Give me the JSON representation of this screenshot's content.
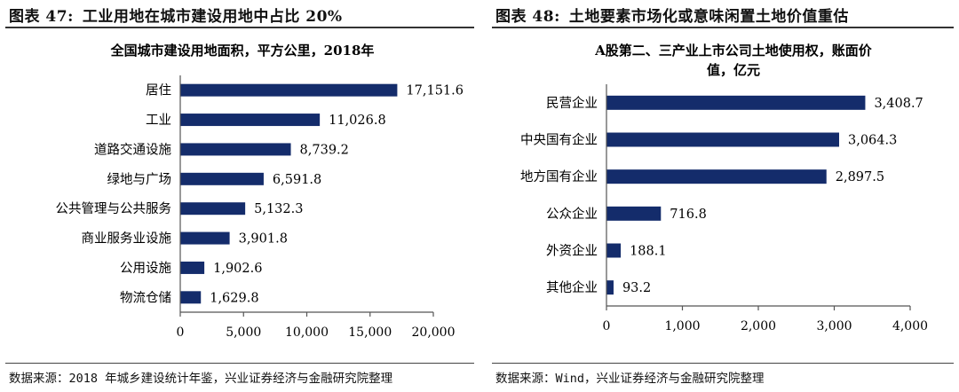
{
  "left": {
    "figure_label": "图表 47:",
    "figure_title": "工业用地在城市建设用地中占比 20%",
    "source": "数据来源：2018 年城乡建设统计年鉴，兴业证券经济与金融研究院整理"
  },
  "right": {
    "figure_label": "图表 48:",
    "figure_title": "土地要素市场化或意味闲置土地价值重估",
    "source": "数据来源：Wind，兴业证券经济与金融研究院整理"
  },
  "chart_data": [
    {
      "type": "bar",
      "orientation": "horizontal",
      "title": "全国城市建设用地面积，平方公里，2018年",
      "title_lines": [
        "全国城市建设用地面积，平方公里，2018年"
      ],
      "categories": [
        "居住",
        "工业",
        "道路交通设施",
        "绿地与广场",
        "公共管理与公共服务",
        "商业服务业设施",
        "公用设施",
        "物流仓储"
      ],
      "values": [
        17151.6,
        11026.8,
        8739.2,
        6591.8,
        5132.3,
        3901.8,
        1902.6,
        1629.8
      ],
      "value_labels": [
        "17,151.6",
        "11,026.8",
        "8,739.2",
        "6,591.8",
        "5,132.3",
        "3,901.8",
        "1,902.6",
        "1,629.8"
      ],
      "xlim": [
        0,
        20000
      ],
      "ticks": [
        0,
        5000,
        10000,
        15000,
        20000
      ],
      "tick_labels": [
        "0",
        "5,000",
        "10,000",
        "15,000",
        "20,000"
      ],
      "bar_color": "#142c6b",
      "grid": false
    },
    {
      "type": "bar",
      "orientation": "horizontal",
      "title": "A股第二、三产业上市公司土地使用权，账面价值，亿元",
      "title_lines": [
        "A股第二、三产业上市公司土地使用权，账面价",
        "值，亿元"
      ],
      "categories": [
        "民营企业",
        "中央国有企业",
        "地方国有企业",
        "公众企业",
        "外资企业",
        "其他企业"
      ],
      "values": [
        3408.7,
        3064.3,
        2897.5,
        716.8,
        188.1,
        93.2
      ],
      "value_labels": [
        "3,408.7",
        "3,064.3",
        "2,897.5",
        "716.8",
        "188.1",
        "93.2"
      ],
      "xlim": [
        0,
        4000
      ],
      "ticks": [
        0,
        1000,
        2000,
        3000,
        4000
      ],
      "tick_labels": [
        "0",
        "1,000",
        "2,000",
        "3,000",
        "4,000"
      ],
      "bar_color": "#142c6b",
      "grid": false
    }
  ]
}
